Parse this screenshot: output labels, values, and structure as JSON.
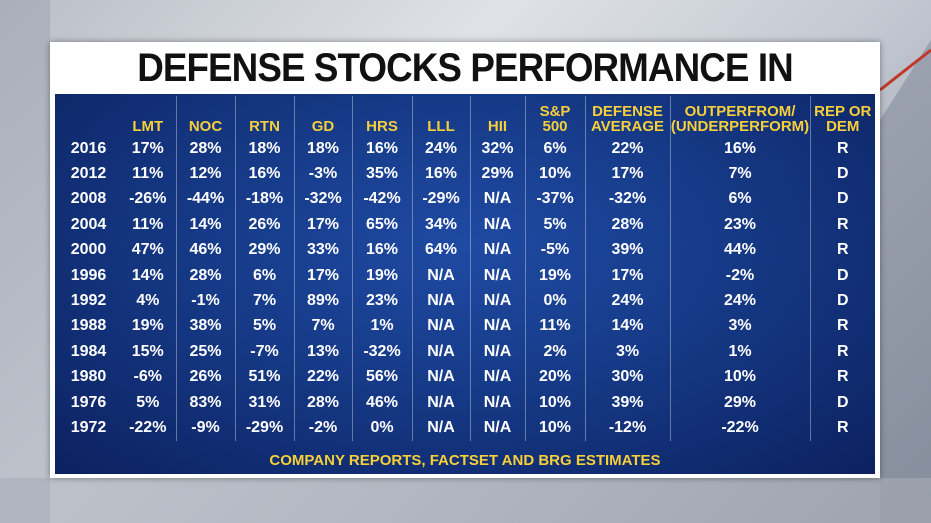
{
  "title": "DEFENSE STOCKS PERFORMANCE IN ELECTION YEAR",
  "table": {
    "headers": [
      "",
      "LMT",
      "NOC",
      "RTN",
      "GD",
      "HRS",
      "LLL",
      "HII",
      "S&P\n500",
      "DEFENSE\nAVERAGE",
      "OUTPERFROM/\n(UNDERPERFORM)",
      "REP OR\nDEM"
    ],
    "rows": [
      [
        "2016",
        "17%",
        "28%",
        "18%",
        "18%",
        "16%",
        "24%",
        "32%",
        "6%",
        "22%",
        "16%",
        "R"
      ],
      [
        "2012",
        "11%",
        "12%",
        "16%",
        "-3%",
        "35%",
        "16%",
        "29%",
        "10%",
        "17%",
        "7%",
        "D"
      ],
      [
        "2008",
        "-26%",
        "-44%",
        "-18%",
        "-32%",
        "-42%",
        "-29%",
        "N/A",
        "-37%",
        "-32%",
        "6%",
        "D"
      ],
      [
        "2004",
        "11%",
        "14%",
        "26%",
        "17%",
        "65%",
        "34%",
        "N/A",
        "5%",
        "28%",
        "23%",
        "R"
      ],
      [
        "2000",
        "47%",
        "46%",
        "29%",
        "33%",
        "16%",
        "64%",
        "N/A",
        "-5%",
        "39%",
        "44%",
        "R"
      ],
      [
        "1996",
        "14%",
        "28%",
        "6%",
        "17%",
        "19%",
        "N/A",
        "N/A",
        "19%",
        "17%",
        "-2%",
        "D"
      ],
      [
        "1992",
        "4%",
        "-1%",
        "7%",
        "89%",
        "23%",
        "N/A",
        "N/A",
        "0%",
        "24%",
        "24%",
        "D"
      ],
      [
        "1988",
        "19%",
        "38%",
        "5%",
        "7%",
        "1%",
        "N/A",
        "N/A",
        "11%",
        "14%",
        "3%",
        "R"
      ],
      [
        "1984",
        "15%",
        "25%",
        "-7%",
        "13%",
        "-32%",
        "N/A",
        "N/A",
        "2%",
        "3%",
        "1%",
        "R"
      ],
      [
        "1980",
        "-6%",
        "26%",
        "51%",
        "22%",
        "56%",
        "N/A",
        "N/A",
        "20%",
        "30%",
        "10%",
        "R"
      ],
      [
        "1976",
        "5%",
        "83%",
        "31%",
        "28%",
        "46%",
        "N/A",
        "N/A",
        "10%",
        "39%",
        "29%",
        "D"
      ],
      [
        "1972",
        "-22%",
        "-9%",
        "-29%",
        "-2%",
        "0%",
        "N/A",
        "N/A",
        "10%",
        "-12%",
        "-22%",
        "R"
      ]
    ]
  },
  "source": "COMPANY REPORTS, FACTSET AND BRG ESTIMATES"
}
